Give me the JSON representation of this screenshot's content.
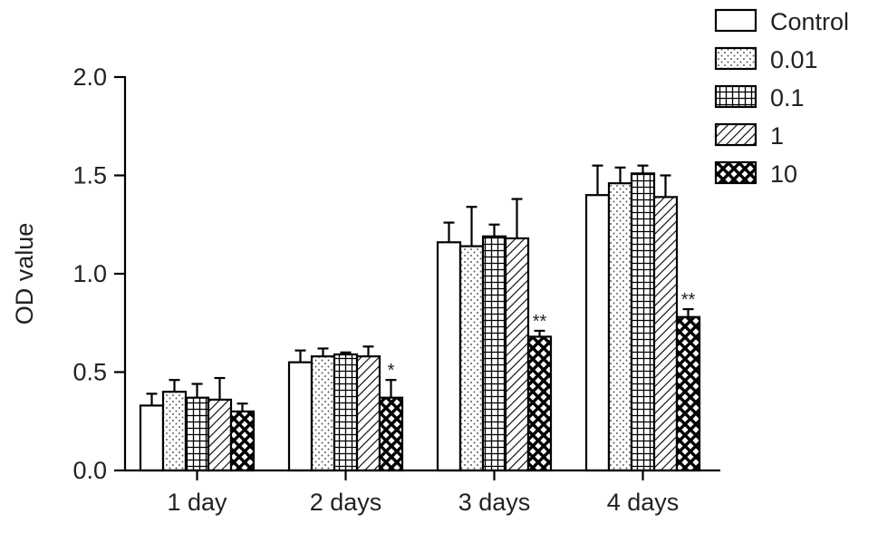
{
  "chart_data": {
    "type": "bar",
    "title": "",
    "xlabel": "",
    "ylabel": "OD value",
    "ylim": [
      0,
      2.0
    ],
    "yticks": [
      {
        "value": 0.0,
        "label": "0.0"
      },
      {
        "value": 0.5,
        "label": "0.5"
      },
      {
        "value": 1.0,
        "label": "1.0"
      },
      {
        "value": 1.5,
        "label": "1.5"
      },
      {
        "value": 2.0,
        "label": "2.0"
      }
    ],
    "categories": [
      "1 day",
      "2 days",
      "3 days",
      "4 days"
    ],
    "grid": false,
    "legend_position": "top-right",
    "series": [
      {
        "name": "Control",
        "pattern": "blank",
        "values": [
          0.33,
          0.55,
          1.16,
          1.4
        ],
        "errors": [
          0.06,
          0.06,
          0.1,
          0.15
        ],
        "significance": [
          "",
          "",
          "",
          ""
        ]
      },
      {
        "name": "0.01",
        "pattern": "dots",
        "values": [
          0.4,
          0.58,
          1.14,
          1.46
        ],
        "errors": [
          0.06,
          0.04,
          0.2,
          0.08
        ],
        "significance": [
          "",
          "",
          "",
          ""
        ]
      },
      {
        "name": "0.1",
        "pattern": "grid",
        "values": [
          0.37,
          0.59,
          1.19,
          1.51
        ],
        "errors": [
          0.07,
          0.01,
          0.06,
          0.04
        ],
        "significance": [
          "",
          "",
          "",
          ""
        ]
      },
      {
        "name": "1",
        "pattern": "diagonal",
        "values": [
          0.36,
          0.58,
          1.18,
          1.39
        ],
        "errors": [
          0.11,
          0.05,
          0.2,
          0.11
        ],
        "significance": [
          "",
          "",
          "",
          ""
        ]
      },
      {
        "name": "10",
        "pattern": "crosshatch",
        "values": [
          0.3,
          0.37,
          0.68,
          0.78
        ],
        "errors": [
          0.04,
          0.09,
          0.03,
          0.04
        ],
        "significance": [
          "",
          "*",
          "**",
          "**"
        ]
      }
    ]
  }
}
